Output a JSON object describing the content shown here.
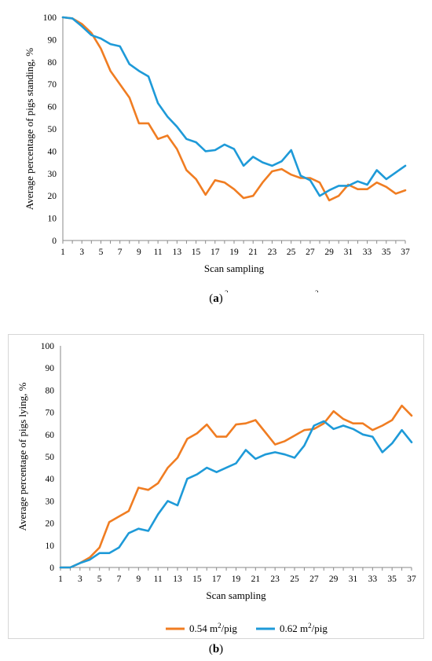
{
  "chart_data": [
    {
      "type": "line",
      "panel_label_prefix": "(",
      "panel_label_letter": "a",
      "panel_label_suffix": ")",
      "xlabel": "Scan sampling",
      "ylabel": "Average percentage of pigs standing, %",
      "ylim": [
        0,
        100
      ],
      "yticks": [
        0,
        10,
        20,
        30,
        40,
        50,
        60,
        70,
        80,
        90,
        100
      ],
      "x": [
        1,
        2,
        3,
        4,
        5,
        6,
        7,
        8,
        9,
        10,
        11,
        12,
        13,
        14,
        15,
        16,
        17,
        18,
        19,
        20,
        21,
        22,
        23,
        24,
        25,
        26,
        27,
        28,
        29,
        30,
        31,
        32,
        33,
        34,
        35,
        36,
        37
      ],
      "legend_position": "bottom",
      "series": [
        {
          "name": "0.54 m2/pig",
          "name_base": "0.54 m",
          "name_sup": "2",
          "name_rest": "/pig",
          "color": "#f07d22",
          "values": [
            100,
            99.5,
            97,
            93,
            86,
            76,
            70,
            64,
            52.5,
            52.5,
            45.5,
            47,
            41,
            31.5,
            27.5,
            20.5,
            27,
            26,
            23,
            19,
            20,
            26,
            31,
            32,
            29.5,
            28,
            28,
            26,
            18,
            20,
            25,
            23,
            23,
            26,
            24,
            21,
            22.5
          ]
        },
        {
          "name": "0.62 m2/pig",
          "name_base": "0.62 m",
          "name_sup": "2",
          "name_rest": "/pig",
          "color": "#1e9ad8",
          "values": [
            100,
            99.5,
            96,
            92,
            90.5,
            88,
            87,
            79,
            76,
            73.5,
            61.5,
            55.5,
            51,
            45.5,
            44,
            40,
            40.5,
            43,
            41,
            33.5,
            37.5,
            35,
            33.5,
            35.5,
            40.5,
            29,
            27,
            20,
            22.5,
            24.5,
            24.5,
            26.5,
            25,
            31.5,
            27.5,
            30.5,
            33.5
          ]
        }
      ]
    },
    {
      "type": "line",
      "panel_label_prefix": "(",
      "panel_label_letter": "b",
      "panel_label_suffix": ")",
      "xlabel": "Scan sampling",
      "ylabel": "Average percentage of pigs lying, %",
      "ylim": [
        0,
        100
      ],
      "yticks": [
        0,
        10,
        20,
        30,
        40,
        50,
        60,
        70,
        80,
        90,
        100
      ],
      "x": [
        1,
        2,
        3,
        4,
        5,
        6,
        7,
        8,
        9,
        10,
        11,
        12,
        13,
        14,
        15,
        16,
        17,
        18,
        19,
        20,
        21,
        22,
        23,
        24,
        25,
        26,
        27,
        28,
        29,
        30,
        31,
        32,
        33,
        34,
        35,
        36,
        37
      ],
      "legend_position": "bottom",
      "series": [
        {
          "name": "0.54 m2/pig",
          "name_base": "0.54 m",
          "name_sup": "2",
          "name_rest": "/pig",
          "color": "#f07d22",
          "values": [
            0,
            0,
            2,
            4.5,
            9,
            20.5,
            23,
            25.5,
            36,
            35,
            38,
            45,
            49.5,
            58,
            60.5,
            64.5,
            59,
            59,
            64.5,
            65,
            66.5,
            61,
            55.5,
            57,
            59.5,
            62,
            62.5,
            65,
            70.5,
            67,
            65,
            65,
            62,
            64,
            66.5,
            73,
            68.5
          ]
        },
        {
          "name": "0.62 m2/pig",
          "name_base": "0.62 m",
          "name_sup": "2",
          "name_rest": "/pig",
          "color": "#1e9ad8",
          "values": [
            0,
            0,
            2,
            3.5,
            6.5,
            6.5,
            9,
            15.5,
            17.5,
            16.5,
            24,
            30,
            28,
            40,
            42,
            45,
            43,
            45,
            47,
            53,
            49,
            51,
            52,
            51,
            49.5,
            55,
            64,
            66,
            62.5,
            64,
            62.5,
            60,
            59,
            52,
            56,
            62,
            56.5
          ]
        }
      ]
    }
  ]
}
